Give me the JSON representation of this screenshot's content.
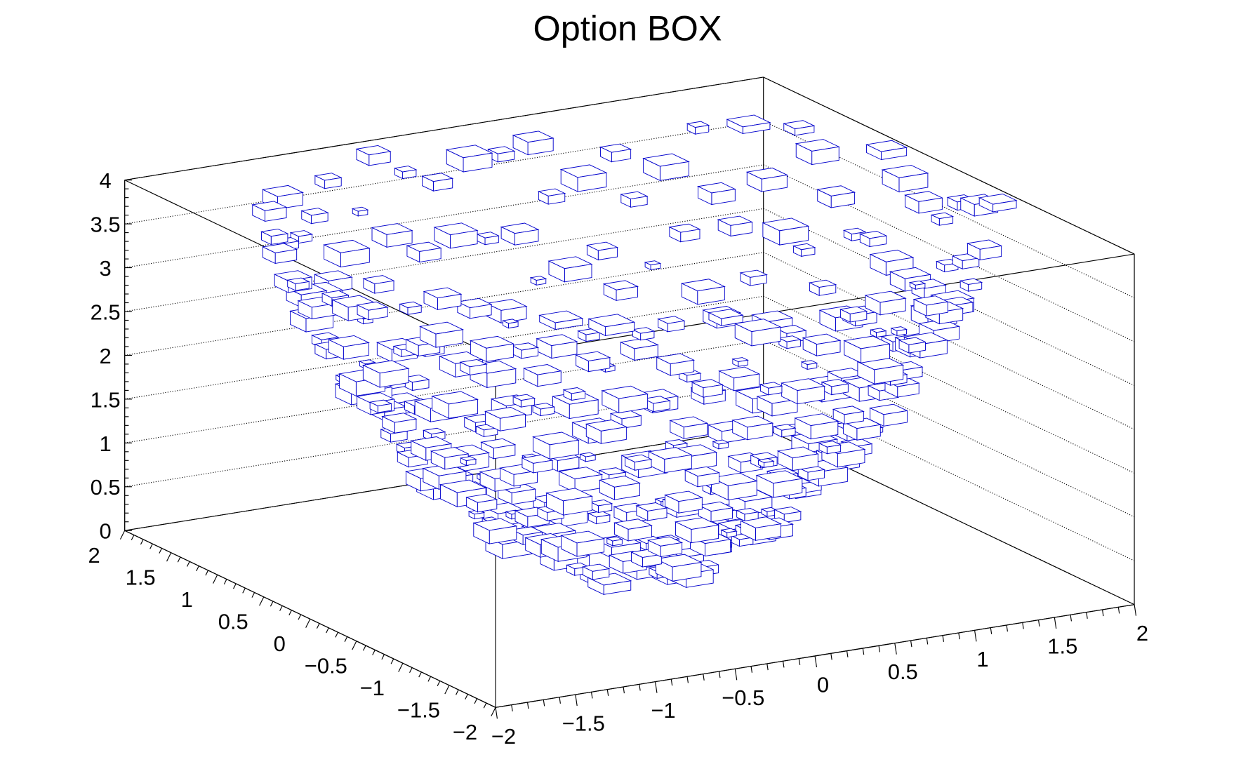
{
  "chart_data": {
    "type": "box3d",
    "title": "Option BOX",
    "description_of_content": "3D histogram, bin contents shown as box size; z approx x^2+y^2",
    "xlim": [
      -2,
      2
    ],
    "ylim": [
      -2,
      2
    ],
    "zlim": [
      0,
      4
    ],
    "x_ticks": [
      "−2",
      "−1.5",
      "−1",
      "−0.5",
      "0",
      "0.5",
      "1",
      "1.5",
      "2"
    ],
    "y_ticks": [
      "−2",
      "−1.5",
      "−1",
      "−0.5",
      "0",
      "0.5",
      "1",
      "1.5",
      "2"
    ],
    "z_ticks": [
      "0",
      "0.5",
      "1",
      "1.5",
      "2",
      "2.5",
      "3",
      "3.5",
      "4"
    ],
    "x_tick_values": [
      -2,
      -1.5,
      -1,
      -0.5,
      0,
      0.5,
      1,
      1.5,
      2
    ],
    "y_tick_values": [
      -2,
      -1.5,
      -1,
      -0.5,
      0,
      0.5,
      1,
      1.5,
      2
    ],
    "z_tick_values": [
      0,
      0.5,
      1,
      1.5,
      2,
      2.5,
      3,
      3.5,
      4
    ],
    "grid": true,
    "nbins_x": 20,
    "nbins_y": 20,
    "relative_content_rows": [
      "36274815926371845293",
      "58139264728391567342",
      "27485936172849361578",
      "94162738591726384915",
      "63829174652938147265",
      "18374926581739462857",
      "75926381497264815936",
      "42817593628173954726",
      "89364172859361728453",
      "31579846271538496172",
      "67248193586274319586",
      "24937516849362571839",
      "58162947372518694327",
      "96385271648392517264",
      "13748629515847263981",
      "74291836472916385742",
      "39526174893725146893",
      "85173942657184392516",
      "26849317582639471835",
      "61937485249371856274"
    ],
    "colors": {
      "box": "#0000cc",
      "axis": "#000000"
    }
  }
}
